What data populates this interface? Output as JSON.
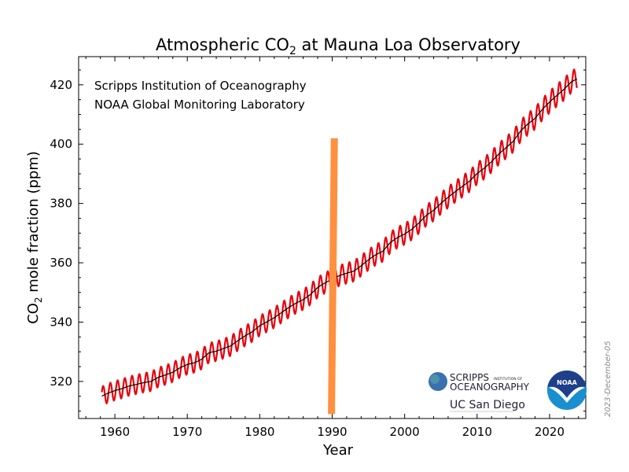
{
  "chart_data": {
    "type": "line",
    "title": {
      "prefix": "Atmospheric CO",
      "sub": "2",
      "suffix": " at Mauna Loa Observatory"
    },
    "xlabel": "Year",
    "ylabel": {
      "prefix": "CO",
      "sub": "2",
      "suffix": " mole fraction (ppm)"
    },
    "xlim": [
      1955,
      2025
    ],
    "ylim": [
      307.5,
      429.5
    ],
    "xticks": [
      "1960",
      "1970",
      "1980",
      "1990",
      "2000",
      "2010",
      "2020"
    ],
    "yticks": [
      "320",
      "340",
      "360",
      "380",
      "400",
      "420"
    ],
    "grid": false,
    "annotations": [
      "Scripps Institution of Oceanography",
      "NOAA Global Monitoring Laboratory"
    ],
    "date_stamp": "2023-December-05",
    "series": [
      {
        "kind": "monthly",
        "color": "#e8000b",
        "seasonal_amplitude_ppm": 3.2
      },
      {
        "kind": "trend",
        "color": "#000000",
        "x": [
          1958.2,
          1959,
          1960,
          1961,
          1962,
          1963,
          1964,
          1965,
          1966,
          1967,
          1968,
          1969,
          1970,
          1971,
          1972,
          1973,
          1974,
          1975,
          1976,
          1977,
          1978,
          1979,
          1980,
          1981,
          1982,
          1983,
          1984,
          1985,
          1986,
          1987,
          1988,
          1989,
          1990,
          1991,
          1992,
          1993,
          1994,
          1995,
          1996,
          1997,
          1998,
          1999,
          2000,
          2001,
          2002,
          2003,
          2004,
          2005,
          2006,
          2007,
          2008,
          2009,
          2010,
          2011,
          2012,
          2013,
          2014,
          2015,
          2016,
          2017,
          2018,
          2019,
          2020,
          2021,
          2022,
          2023,
          2023.8
        ],
        "y": [
          315.0,
          316.0,
          316.9,
          317.6,
          318.5,
          319.0,
          319.6,
          320.0,
          321.4,
          322.2,
          323.1,
          324.6,
          325.7,
          326.3,
          327.5,
          329.7,
          330.2,
          331.1,
          332.0,
          333.8,
          335.4,
          336.8,
          338.8,
          340.1,
          341.5,
          343.2,
          344.9,
          346.4,
          347.6,
          349.3,
          351.7,
          353.2,
          354.5,
          355.7,
          356.5,
          357.2,
          359.0,
          361.0,
          362.7,
          363.9,
          366.8,
          368.5,
          369.7,
          371.3,
          373.5,
          376.0,
          377.7,
          380.0,
          382.1,
          384.0,
          385.8,
          387.6,
          390.1,
          391.9,
          394.1,
          396.7,
          398.8,
          401.0,
          404.4,
          406.8,
          408.7,
          411.7,
          414.2,
          416.4,
          418.5,
          421.0,
          422.0
        ]
      }
    ],
    "overlay_bar": {
      "color": "#ff9040",
      "x_top": 1990.3,
      "x_bottom": 1989.9,
      "y_top": 402,
      "y_bottom": 309
    }
  },
  "logos": {
    "scripps_line1": "SCRIPPS",
    "scripps_small": "INSTITUTION OF",
    "scripps_line2": "OCEANOGRAPHY",
    "ucsd": "UC San Diego",
    "noaa": "NOAA"
  }
}
